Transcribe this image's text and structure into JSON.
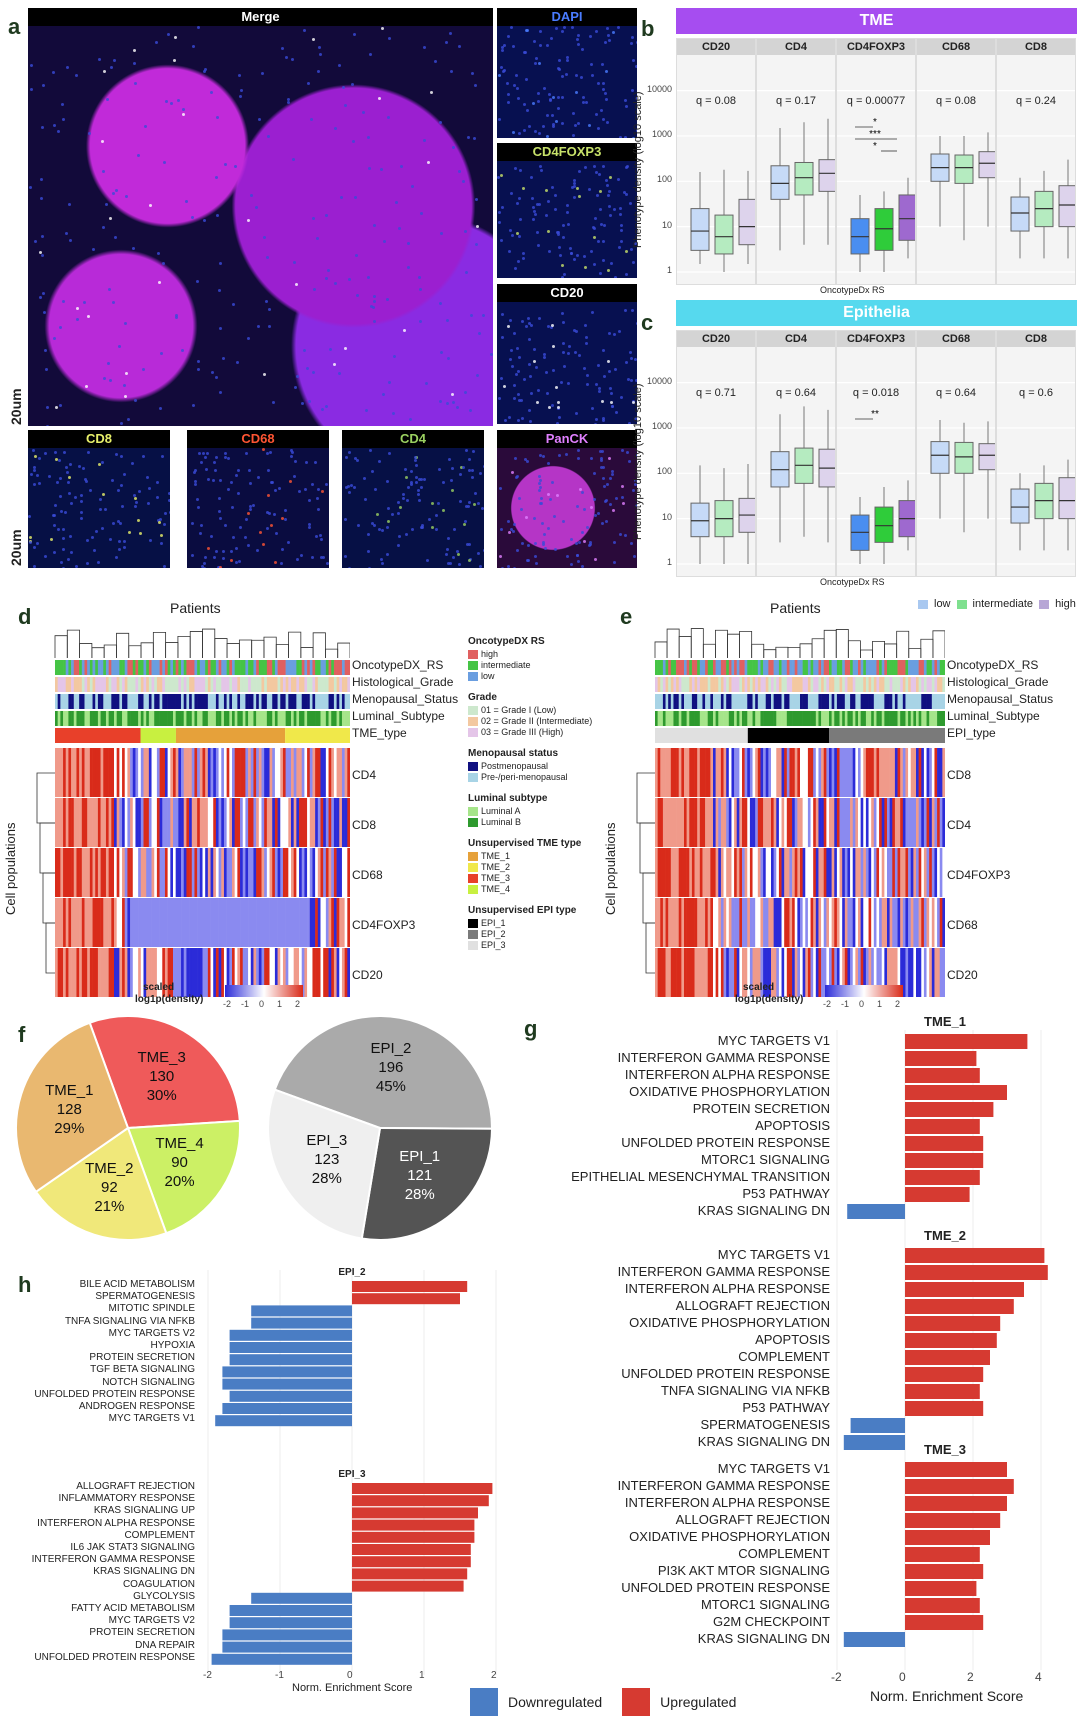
{
  "panel_letters": [
    "a",
    "b",
    "c",
    "d",
    "e",
    "f",
    "g",
    "h"
  ],
  "panel_a": {
    "scale_label": "20um",
    "tiles": [
      {
        "name": "Merge",
        "color": "#ffffff"
      },
      {
        "name": "DAPI",
        "color": "#4a7cff"
      },
      {
        "name": "CD4FOXP3",
        "color": "#c8e26a"
      },
      {
        "name": "CD20",
        "color": "#ffffff"
      },
      {
        "name": "CD8",
        "color": "#e8f06a"
      },
      {
        "name": "CD68",
        "color": "#ff5533"
      },
      {
        "name": "CD4",
        "color": "#9ad060"
      },
      {
        "name": "PanCK",
        "color": "#e080ff"
      }
    ]
  },
  "panel_bc": {
    "yaxis_label": "Phenotype density (log10 scale)",
    "xaxis_label": "OncotypeDx RS",
    "y_ticks": [
      "1",
      "10",
      "100",
      "1000",
      "10000"
    ],
    "legend": [
      {
        "label": "low",
        "color": "#a9c8f0"
      },
      {
        "label": "intermediate",
        "color": "#7fe08f"
      },
      {
        "label": "high",
        "color": "#b7a6d6"
      }
    ],
    "b": {
      "title": "TME",
      "color": "#a64df0",
      "facets": [
        {
          "name": "CD20",
          "q": "q = 0.08"
        },
        {
          "name": "CD4",
          "q": "q = 0.17"
        },
        {
          "name": "CD4FOXP3",
          "q": "q = 0.00077",
          "stars": [
            "*",
            "***",
            "*"
          ]
        },
        {
          "name": "CD68",
          "q": "q = 0.08"
        },
        {
          "name": "CD8",
          "q": "q = 0.24"
        }
      ]
    },
    "c": {
      "title": "Epithelia",
      "color": "#56d9ee",
      "facets": [
        {
          "name": "CD20",
          "q": "q = 0.71"
        },
        {
          "name": "CD4",
          "q": "q = 0.64"
        },
        {
          "name": "CD4FOXP3",
          "q": "q = 0.018",
          "stars": [
            "**"
          ]
        },
        {
          "name": "CD68",
          "q": "q = 0.64"
        },
        {
          "name": "CD8",
          "q": "q = 0.6"
        }
      ]
    }
  },
  "panel_d": {
    "title": "Patients",
    "ylabel": "Cell populations",
    "annot_rows": [
      "OncotypeDX_RS",
      "Histological_Grade",
      "Menopausal_Status",
      "Luminal_Subtype",
      "TME_type"
    ],
    "rows": [
      "CD4",
      "CD8",
      "CD68",
      "CD4FOXP3",
      "CD20"
    ],
    "scale_title": "scaled",
    "scale_sub": "log1p(density)",
    "scale_ticks": [
      "-2",
      "-1",
      "0",
      "1",
      "2"
    ]
  },
  "panel_e": {
    "title": "Patients",
    "ylabel": "Cell populations",
    "annot_rows": [
      "OncotypeDX_RS",
      "Histological_Grade",
      "Menopausal_Status",
      "Luminal_Subtype",
      "EPI_type"
    ],
    "rows": [
      "CD8",
      "CD4",
      "CD4FOXP3",
      "CD68",
      "CD20"
    ],
    "scale_title": "scaled",
    "scale_sub": "log1p(density)",
    "scale_ticks": [
      "-2",
      "-1",
      "0",
      "1",
      "2"
    ]
  },
  "heat_legend": [
    {
      "title": "OncotypeDX RS",
      "items": [
        {
          "l": "high",
          "c": "#e06060"
        },
        {
          "l": "intermediate",
          "c": "#45c445"
        },
        {
          "l": "low",
          "c": "#6a9ee0"
        }
      ]
    },
    {
      "title": "Grade",
      "items": [
        {
          "l": "01 = Grade I (Low)",
          "c": "#cde8cd"
        },
        {
          "l": "02 = Grade II (Intermediate)",
          "c": "#f3c8a0"
        },
        {
          "l": "03 = Grade III (High)",
          "c": "#e4c5e8"
        }
      ]
    },
    {
      "title": "Menopausal status",
      "items": [
        {
          "l": "Postmenopausal",
          "c": "#101080"
        },
        {
          "l": "Pre-/peri-menopausal",
          "c": "#a8d4e6"
        }
      ]
    },
    {
      "title": "Luminal subtype",
      "items": [
        {
          "l": "Luminal A",
          "c": "#a6e58a"
        },
        {
          "l": "Luminal B",
          "c": "#2e9a2e"
        }
      ]
    },
    {
      "title": "Unsupervised TME type",
      "items": [
        {
          "l": "TME_1",
          "c": "#e6a13a"
        },
        {
          "l": "TME_2",
          "c": "#f0e84a"
        },
        {
          "l": "TME_3",
          "c": "#e8402a"
        },
        {
          "l": "TME_4",
          "c": "#c8f040"
        }
      ]
    },
    {
      "title": "Unsupervised EPI type",
      "items": [
        {
          "l": "EPI_1",
          "c": "#000000"
        },
        {
          "l": "EPI_2",
          "c": "#7a7a7a"
        },
        {
          "l": "EPI_3",
          "c": "#e0e0e0"
        }
      ]
    }
  ],
  "panel_f": {
    "tme": [
      {
        "name": "TME_3",
        "count": "130",
        "pct": "30%",
        "value": 130,
        "color": "#ef5a5a"
      },
      {
        "name": "TME_4",
        "count": "90",
        "pct": "20%",
        "value": 90,
        "color": "#ccf065"
      },
      {
        "name": "TME_2",
        "count": "92",
        "pct": "21%",
        "value": 92,
        "color": "#f0e87a"
      },
      {
        "name": "TME_1",
        "count": "128",
        "pct": "29%",
        "value": 128,
        "color": "#e9b870"
      }
    ],
    "epi": [
      {
        "name": "EPI_2",
        "count": "196",
        "pct": "45%",
        "value": 196,
        "color": "#aaaaaa"
      },
      {
        "name": "EPI_1",
        "count": "121",
        "pct": "28%",
        "value": 121,
        "color": "#545454"
      },
      {
        "name": "EPI_3",
        "count": "123",
        "pct": "28%",
        "value": 123,
        "color": "#efefef"
      }
    ]
  },
  "panel_g": {
    "xlabel": "Norm. Enrichment Score",
    "xticks": [
      "-2",
      "0",
      "2",
      "4"
    ],
    "groups": [
      {
        "title": "TME_1",
        "bars": [
          {
            "l": "MYC TARGETS V1",
            "v": 3.6
          },
          {
            "l": "INTERFERON GAMMA RESPONSE",
            "v": 2.1
          },
          {
            "l": "INTERFERON ALPHA RESPONSE",
            "v": 2.2
          },
          {
            "l": "OXIDATIVE PHOSPHORYLATION",
            "v": 3.0
          },
          {
            "l": "PROTEIN SECRETION",
            "v": 2.6
          },
          {
            "l": "APOPTOSIS",
            "v": 2.2
          },
          {
            "l": "UNFOLDED PROTEIN RESPONSE",
            "v": 2.3
          },
          {
            "l": "MTORC1 SIGNALING",
            "v": 2.3
          },
          {
            "l": "EPITHELIAL MESENCHYMAL TRANSITION",
            "v": 2.2
          },
          {
            "l": "P53 PATHWAY",
            "v": 1.9
          },
          {
            "l": "KRAS SIGNALING DN",
            "v": -1.7
          }
        ]
      },
      {
        "title": "TME_2",
        "bars": [
          {
            "l": "MYC TARGETS V1",
            "v": 4.1
          },
          {
            "l": "INTERFERON GAMMA RESPONSE",
            "v": 4.2
          },
          {
            "l": "INTERFERON ALPHA RESPONSE",
            "v": 3.5
          },
          {
            "l": "ALLOGRAFT REJECTION",
            "v": 3.2
          },
          {
            "l": "OXIDATIVE PHOSPHORYLATION",
            "v": 2.8
          },
          {
            "l": "APOPTOSIS",
            "v": 2.7
          },
          {
            "l": "COMPLEMENT",
            "v": 2.5
          },
          {
            "l": "UNFOLDED PROTEIN RESPONSE",
            "v": 2.3
          },
          {
            "l": "TNFA SIGNALING VIA NFKB",
            "v": 2.2
          },
          {
            "l": "P53 PATHWAY",
            "v": 2.3
          },
          {
            "l": "SPERMATOGENESIS",
            "v": -1.6
          },
          {
            "l": "KRAS SIGNALING DN",
            "v": -1.8
          }
        ]
      },
      {
        "title": "TME_3",
        "bars": [
          {
            "l": "MYC TARGETS V1",
            "v": 3.0
          },
          {
            "l": "INTERFERON GAMMA RESPONSE",
            "v": 3.2
          },
          {
            "l": "INTERFERON ALPHA RESPONSE",
            "v": 3.0
          },
          {
            "l": "ALLOGRAFT REJECTION",
            "v": 2.8
          },
          {
            "l": "OXIDATIVE PHOSPHORYLATION",
            "v": 2.5
          },
          {
            "l": "COMPLEMENT",
            "v": 2.2
          },
          {
            "l": "PI3K AKT MTOR SIGNALING",
            "v": 2.3
          },
          {
            "l": "UNFOLDED PROTEIN RESPONSE",
            "v": 2.1
          },
          {
            "l": "MTORC1 SIGNALING",
            "v": 2.2
          },
          {
            "l": "G2M CHECKPOINT",
            "v": 2.3
          },
          {
            "l": "KRAS SIGNALING DN",
            "v": -1.8
          }
        ]
      }
    ]
  },
  "panel_h": {
    "xlabel": "Norm. Enrichment Score",
    "xticks": [
      "-2",
      "-1",
      "0",
      "1",
      "2"
    ],
    "groups": [
      {
        "title": "EPI_2",
        "bars": [
          {
            "l": "BILE ACID METABOLISM",
            "v": 1.6
          },
          {
            "l": "SPERMATOGENESIS",
            "v": 1.5
          },
          {
            "l": "MITOTIC SPINDLE",
            "v": -1.4
          },
          {
            "l": "TNFA SIGNALING VIA NFKB",
            "v": -1.4
          },
          {
            "l": "MYC TARGETS V2",
            "v": -1.7
          },
          {
            "l": "HYPOXIA",
            "v": -1.7
          },
          {
            "l": "PROTEIN SECRETION",
            "v": -1.7
          },
          {
            "l": "TGF BETA SIGNALING",
            "v": -1.8
          },
          {
            "l": "NOTCH SIGNALING",
            "v": -1.8
          },
          {
            "l": "UNFOLDED PROTEIN RESPONSE",
            "v": -1.7
          },
          {
            "l": "ANDROGEN RESPONSE",
            "v": -1.8
          },
          {
            "l": "MYC TARGETS V1",
            "v": -1.9
          }
        ]
      },
      {
        "title": "EPI_3",
        "bars": [
          {
            "l": "ALLOGRAFT REJECTION",
            "v": 1.95
          },
          {
            "l": "INFLAMMATORY RESPONSE",
            "v": 1.9
          },
          {
            "l": "KRAS SIGNALING UP",
            "v": 1.75
          },
          {
            "l": "INTERFERON ALPHA RESPONSE",
            "v": 1.7
          },
          {
            "l": "COMPLEMENT",
            "v": 1.7
          },
          {
            "l": "IL6 JAK STAT3 SIGNALING",
            "v": 1.65
          },
          {
            "l": "INTERFERON GAMMA RESPONSE",
            "v": 1.65
          },
          {
            "l": "KRAS SIGNALING DN",
            "v": 1.6
          },
          {
            "l": "COAGULATION",
            "v": 1.55
          },
          {
            "l": "GLYCOLYSIS",
            "v": -1.4
          },
          {
            "l": "FATTY ACID METABOLISM",
            "v": -1.7
          },
          {
            "l": "MYC TARGETS V2",
            "v": -1.7
          },
          {
            "l": "PROTEIN SECRETION",
            "v": -1.8
          },
          {
            "l": "DNA REPAIR",
            "v": -1.8
          },
          {
            "l": "UNFOLDED PROTEIN RESPONSE",
            "v": -1.95
          }
        ]
      }
    ]
  },
  "bottom_legend": [
    {
      "label": "Downregulated",
      "color": "#4a7dc4"
    },
    {
      "label": "Upregulated",
      "color": "#d63a31"
    }
  ],
  "colors": {
    "up": "#d63a31",
    "down": "#4a7dc4"
  }
}
